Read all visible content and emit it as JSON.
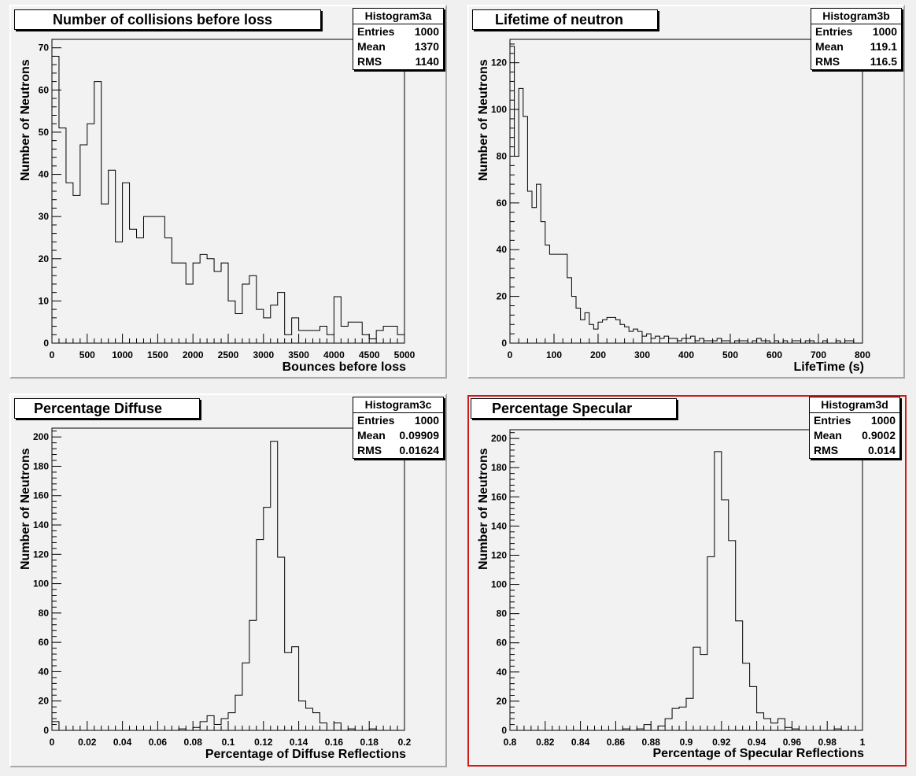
{
  "panels": [
    {
      "title": "Number of collisions before loss",
      "stats": {
        "name": "Histogram3a",
        "rows": [
          [
            "Entries",
            "1000"
          ],
          [
            "Mean",
            "1370"
          ],
          [
            "RMS",
            "1140"
          ]
        ]
      },
      "selected": false
    },
    {
      "title": "Lifetime of neutron",
      "stats": {
        "name": "Histogram3b",
        "rows": [
          [
            "Entries",
            "1000"
          ],
          [
            "Mean",
            "119.1"
          ],
          [
            "RMS",
            "116.5"
          ]
        ]
      },
      "selected": false
    },
    {
      "title": "Percentage Diffuse",
      "stats": {
        "name": "Histogram3c",
        "rows": [
          [
            "Entries",
            "1000"
          ],
          [
            "Mean",
            "0.09909"
          ],
          [
            "RMS",
            "0.01624"
          ]
        ]
      },
      "selected": false
    },
    {
      "title": "Percentage Specular",
      "stats": {
        "name": "Histogram3d",
        "rows": [
          [
            "Entries",
            "1000"
          ],
          [
            "Mean",
            "0.9002"
          ],
          [
            "RMS",
            "0.014"
          ]
        ]
      },
      "selected": true
    }
  ],
  "colors": {
    "line": "#000000",
    "selected_border": "#d11a1a",
    "pad_bg": "#f2f2f2"
  },
  "chart_data": [
    {
      "type": "bar",
      "title": "Number of collisions before loss",
      "xlabel": "Bounces before loss",
      "ylabel": "Number of Neutrons",
      "xlim": [
        0,
        5000
      ],
      "ylim": [
        0,
        72
      ],
      "xticks": [
        0,
        500,
        1000,
        1500,
        2000,
        2500,
        3000,
        3500,
        4000,
        4500,
        5000
      ],
      "xtick_labels": [
        "0",
        "500",
        "1000",
        "1500",
        "2000",
        "2500",
        "3000",
        "3500",
        "4000",
        "4500",
        "5000"
      ],
      "yticks": [
        0,
        10,
        20,
        30,
        40,
        50,
        60,
        70
      ],
      "ytick_labels": [
        "0",
        "10",
        "20",
        "30",
        "40",
        "50",
        "60",
        "70"
      ],
      "bins": 50,
      "values": [
        68,
        51,
        38,
        35,
        47,
        52,
        62,
        33,
        41,
        24,
        38,
        27,
        25,
        30,
        30,
        30,
        25,
        19,
        19,
        14,
        19,
        21,
        20,
        17,
        19,
        10,
        7,
        14,
        16,
        8,
        6,
        9,
        12,
        2,
        6,
        3,
        3,
        3,
        4,
        2,
        11,
        4,
        5,
        5,
        2,
        1,
        3,
        4,
        4,
        2
      ]
    },
    {
      "type": "bar",
      "title": "Lifetime of neutron",
      "xlabel": "LifeTime (s)",
      "ylabel": "Number of Neutrons",
      "xlim": [
        0,
        800
      ],
      "ylim": [
        0,
        130
      ],
      "xticks": [
        0,
        100,
        200,
        300,
        400,
        500,
        600,
        700,
        800
      ],
      "xtick_labels": [
        "0",
        "100",
        "200",
        "300",
        "400",
        "500",
        "600",
        "700",
        "800"
      ],
      "yticks": [
        0,
        20,
        40,
        60,
        80,
        100,
        120
      ],
      "ytick_labels": [
        "0",
        "20",
        "40",
        "60",
        "80",
        "100",
        "120"
      ],
      "bins": 80,
      "values": [
        127,
        80,
        109,
        97,
        65,
        58,
        68,
        52,
        42,
        38,
        38,
        38,
        38,
        28,
        20,
        15,
        10,
        13,
        8,
        6,
        9,
        10,
        11,
        11,
        10,
        8,
        7,
        5,
        6,
        5,
        3,
        4,
        2,
        3,
        2,
        3,
        2,
        2,
        1,
        2,
        2,
        3,
        1,
        2,
        1,
        1,
        1,
        2,
        1,
        1,
        0,
        1,
        1,
        1,
        0,
        1,
        2,
        1,
        1,
        0,
        1,
        0,
        1,
        0,
        1,
        1,
        0,
        1,
        1,
        0,
        0,
        1,
        0,
        0,
        1,
        0,
        1,
        1,
        0,
        0
      ]
    },
    {
      "type": "bar",
      "title": "Percentage Diffuse",
      "xlabel": "Percentage of Diffuse Reflections",
      "ylabel": "Number of Neutrons",
      "xlim": [
        0,
        0.2
      ],
      "ylim": [
        0,
        206
      ],
      "xticks": [
        0,
        0.02,
        0.04,
        0.06,
        0.08,
        0.1,
        0.12,
        0.14,
        0.16,
        0.18,
        0.2
      ],
      "xtick_labels": [
        "0",
        "0.02",
        "0.04",
        "0.06",
        "0.08",
        "0.1",
        "0.12",
        "0.14",
        "0.16",
        "0.18",
        "0.2"
      ],
      "yticks": [
        0,
        20,
        40,
        60,
        80,
        100,
        120,
        140,
        160,
        180,
        200
      ],
      "ytick_labels": [
        "0",
        "20",
        "40",
        "60",
        "80",
        "100",
        "120",
        "140",
        "160",
        "180",
        "200"
      ],
      "bins": 50,
      "values": [
        6,
        0,
        0,
        0,
        0,
        0,
        0,
        0,
        0,
        0,
        0,
        0,
        0,
        0,
        0,
        0,
        0,
        0,
        1,
        0,
        2,
        6,
        10,
        4,
        8,
        12,
        24,
        46,
        75,
        130,
        152,
        197,
        118,
        53,
        57,
        20,
        15,
        12,
        5,
        0,
        5,
        0,
        1,
        0,
        0,
        1,
        0,
        0,
        0,
        0
      ]
    },
    {
      "type": "bar",
      "title": "Percentage Specular",
      "xlabel": "Percentage of Specular Reflections",
      "ylabel": "Number of Neutrons",
      "xlim": [
        0.8,
        1.0
      ],
      "ylim": [
        0,
        206
      ],
      "xticks": [
        0.8,
        0.82,
        0.84,
        0.86,
        0.88,
        0.9,
        0.92,
        0.94,
        0.96,
        0.98,
        1
      ],
      "xtick_labels": [
        "0.8",
        "0.82",
        "0.84",
        "0.86",
        "0.88",
        "0.9",
        "0.92",
        "0.94",
        "0.96",
        "0.98",
        "1"
      ],
      "yticks": [
        0,
        20,
        40,
        60,
        80,
        100,
        120,
        140,
        160,
        180,
        200
      ],
      "ytick_labels": [
        "0",
        "20",
        "40",
        "60",
        "80",
        "100",
        "120",
        "140",
        "160",
        "180",
        "200"
      ],
      "bins": 50,
      "values": [
        0,
        0,
        0,
        0,
        0,
        0,
        0,
        0,
        0,
        0,
        0,
        0,
        0,
        0,
        0,
        0,
        1,
        0,
        1,
        4,
        0,
        3,
        8,
        15,
        16,
        22,
        57,
        52,
        119,
        191,
        158,
        130,
        75,
        46,
        30,
        12,
        8,
        5,
        8,
        2,
        1,
        0,
        0,
        0,
        0,
        0,
        1,
        0,
        0,
        0
      ]
    }
  ]
}
